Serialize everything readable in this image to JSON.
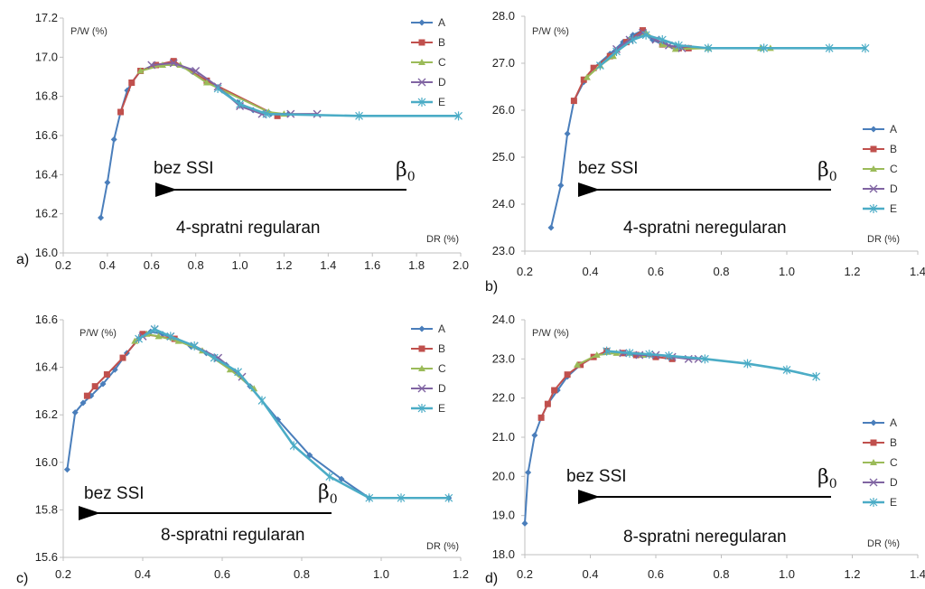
{
  "colors": {
    "A": "#4a7ebb",
    "B": "#c0504d",
    "C": "#9bbb59",
    "D": "#8064a2",
    "E": "#4bacc6",
    "arrow": "#000000",
    "axis": "#bfbfbf"
  },
  "legend_names": [
    "A",
    "B",
    "C",
    "D",
    "E"
  ],
  "chart_data": [
    {
      "type": "line",
      "panel_label": "a)",
      "ylabel": "P/W (%)",
      "xlabel": "DR (%)",
      "xlim": [
        0.2,
        2.0
      ],
      "ylim": [
        16.0,
        17.2
      ],
      "xticks": [
        "0.2",
        "0.4",
        "0.6",
        "0.8",
        "1.0",
        "1.2",
        "1.4",
        "1.6",
        "1.8",
        "2.0"
      ],
      "yticks": [
        "16.0",
        "16.2",
        "16.4",
        "16.6",
        "16.8",
        "17.0",
        "17.2"
      ],
      "annotation_left": "bez SSI",
      "beta": "β",
      "beta_sub": "0",
      "title_note": "4-spratni regularan",
      "series": [
        {
          "name": "A",
          "x": [
            0.37,
            0.4,
            0.43,
            0.46,
            0.49,
            0.51,
            0.55,
            0.61,
            0.69,
            0.78,
            0.85,
            0.92,
            0.99,
            1.06,
            1.14,
            1.22
          ],
          "y": [
            16.18,
            16.36,
            16.58,
            16.72,
            16.83,
            16.87,
            16.93,
            16.96,
            16.97,
            16.93,
            16.88,
            16.83,
            16.77,
            16.73,
            16.71,
            16.71
          ]
        },
        {
          "name": "B",
          "x": [
            0.46,
            0.51,
            0.55,
            0.62,
            0.7,
            0.85,
            1.17
          ],
          "y": [
            16.72,
            16.87,
            16.93,
            16.96,
            16.98,
            16.88,
            16.7
          ]
        },
        {
          "name": "C",
          "x": [
            0.55,
            0.65,
            0.73,
            0.85,
            1.13,
            1.2
          ],
          "y": [
            16.93,
            16.96,
            16.96,
            16.87,
            16.72,
            16.71
          ]
        },
        {
          "name": "D",
          "x": [
            0.6,
            0.7,
            0.8,
            0.9,
            1.0,
            1.1,
            1.23,
            1.35
          ],
          "y": [
            16.96,
            16.97,
            16.93,
            16.85,
            16.75,
            16.71,
            16.71,
            16.71
          ]
        },
        {
          "name": "E",
          "x": [
            0.9,
            1.0,
            1.12,
            1.54,
            1.99
          ],
          "y": [
            16.84,
            16.76,
            16.71,
            16.7,
            16.7
          ]
        }
      ]
    },
    {
      "type": "line",
      "panel_label": "b)",
      "ylabel": "P/W (%)",
      "xlabel": "DR (%)",
      "xlim": [
        0.2,
        1.4
      ],
      "ylim": [
        23.0,
        28.0
      ],
      "xticks": [
        "0.2",
        "0.4",
        "0.6",
        "0.8",
        "1.0",
        "1.2",
        "1.4"
      ],
      "yticks": [
        "23.0",
        "24.0",
        "25.0",
        "26.0",
        "27.0",
        "28.0"
      ],
      "annotation_left": "bez SSI",
      "beta": "β",
      "beta_sub": "0",
      "title_note": "4-spratni neregularan",
      "series": [
        {
          "name": "A",
          "x": [
            0.28,
            0.31,
            0.33,
            0.35,
            0.38,
            0.41,
            0.46,
            0.5,
            0.53,
            0.56,
            0.59,
            0.62,
            0.66,
            0.7,
            0.76
          ],
          "y": [
            23.5,
            24.4,
            25.5,
            26.2,
            26.6,
            26.9,
            27.2,
            27.45,
            27.6,
            27.7,
            27.5,
            27.4,
            27.35,
            27.33,
            27.32
          ]
        },
        {
          "name": "B",
          "x": [
            0.35,
            0.38,
            0.41,
            0.46,
            0.51,
            0.56,
            0.62,
            0.67,
            0.7
          ],
          "y": [
            26.2,
            26.65,
            26.9,
            27.15,
            27.45,
            27.7,
            27.4,
            27.32,
            27.32
          ]
        },
        {
          "name": "C",
          "x": [
            0.39,
            0.43,
            0.47,
            0.52,
            0.57,
            0.62,
            0.66,
            0.76,
            0.92,
            0.95
          ],
          "y": [
            26.7,
            26.95,
            27.15,
            27.5,
            27.65,
            27.4,
            27.3,
            27.32,
            27.32,
            27.32
          ]
        },
        {
          "name": "D",
          "x": [
            0.48,
            0.52,
            0.56,
            0.6,
            0.64,
            0.68
          ],
          "y": [
            27.3,
            27.5,
            27.65,
            27.5,
            27.38,
            27.32
          ]
        },
        {
          "name": "E",
          "x": [
            0.43,
            0.48,
            0.53,
            0.57,
            0.62,
            0.67,
            0.76,
            0.93,
            1.13,
            1.24
          ],
          "y": [
            26.95,
            27.25,
            27.5,
            27.6,
            27.5,
            27.38,
            27.32,
            27.32,
            27.32,
            27.32
          ]
        }
      ]
    },
    {
      "type": "line",
      "panel_label": "c)",
      "ylabel": "P/W (%)",
      "xlabel": "DR (%)",
      "xlim": [
        0.2,
        1.2
      ],
      "ylim": [
        15.6,
        16.6
      ],
      "xticks": [
        "0.2",
        "0.4",
        "0.6",
        "0.8",
        "1.0",
        "1.2"
      ],
      "yticks": [
        "15.6",
        "15.8",
        "16.0",
        "16.2",
        "16.4",
        "16.6"
      ],
      "annotation_left": "bez SSI",
      "beta": "β",
      "beta_sub": "0",
      "title_note": "8-spratni regularan",
      "series": [
        {
          "name": "A",
          "x": [
            0.21,
            0.23,
            0.25,
            0.27,
            0.3,
            0.33,
            0.36,
            0.39,
            0.42,
            0.45,
            0.48,
            0.52,
            0.56,
            0.61,
            0.67,
            0.74,
            0.82,
            0.9,
            0.97,
            1.17
          ],
          "y": [
            15.97,
            16.21,
            16.25,
            16.28,
            16.33,
            16.39,
            16.46,
            16.52,
            16.55,
            16.54,
            16.52,
            16.49,
            16.46,
            16.41,
            16.32,
            16.18,
            16.03,
            15.93,
            15.85,
            15.85
          ]
        },
        {
          "name": "B",
          "x": [
            0.26,
            0.28,
            0.31,
            0.35,
            0.4,
            0.48
          ],
          "y": [
            16.28,
            16.32,
            16.37,
            16.44,
            16.54,
            16.52
          ]
        },
        {
          "name": "C",
          "x": [
            0.38,
            0.41,
            0.44,
            0.49,
            0.55,
            0.62,
            0.68
          ],
          "y": [
            16.51,
            16.54,
            16.53,
            16.51,
            16.47,
            16.39,
            16.31
          ]
        },
        {
          "name": "D",
          "x": [
            0.4,
            0.43,
            0.47,
            0.53,
            0.59,
            0.65
          ],
          "y": [
            16.53,
            16.56,
            16.53,
            16.49,
            16.44,
            16.36
          ]
        },
        {
          "name": "E",
          "x": [
            0.39,
            0.43,
            0.47,
            0.53,
            0.58,
            0.64,
            0.7,
            0.78,
            0.87,
            0.97,
            1.05,
            1.17
          ],
          "y": [
            16.52,
            16.56,
            16.53,
            16.49,
            16.44,
            16.38,
            16.26,
            16.07,
            15.94,
            15.85,
            15.85,
            15.85
          ]
        }
      ]
    },
    {
      "type": "line",
      "panel_label": "d)",
      "ylabel": "P/W (%)",
      "xlabel": "DR (%)",
      "xlim": [
        0.2,
        1.4
      ],
      "ylim": [
        18.0,
        24.0
      ],
      "xticks": [
        "0.2",
        "0.4",
        "0.6",
        "0.8",
        "1.0",
        "1.2",
        "1.4"
      ],
      "yticks": [
        "18.0",
        "19.0",
        "20.0",
        "21.0",
        "22.0",
        "23.0",
        "24.0"
      ],
      "annotation_left": "bez SSI",
      "beta": "β",
      "beta_sub": "0",
      "title_note": "8-spratni neregularan",
      "series": [
        {
          "name": "A",
          "x": [
            0.2,
            0.21,
            0.23,
            0.25,
            0.27,
            0.3,
            0.33,
            0.37,
            0.41,
            0.45
          ],
          "y": [
            18.8,
            20.1,
            21.05,
            21.5,
            21.85,
            22.2,
            22.55,
            22.85,
            23.05,
            23.2
          ]
        },
        {
          "name": "B",
          "x": [
            0.25,
            0.27,
            0.29,
            0.33,
            0.37,
            0.41,
            0.45,
            0.5,
            0.54,
            0.6,
            0.65
          ],
          "y": [
            21.5,
            21.85,
            22.2,
            22.6,
            22.85,
            23.05,
            23.2,
            23.15,
            23.1,
            23.05,
            23.0
          ]
        },
        {
          "name": "C",
          "x": [
            0.36,
            0.42,
            0.48,
            0.52,
            0.56
          ],
          "y": [
            22.85,
            23.1,
            23.15,
            23.15,
            23.1
          ]
        },
        {
          "name": "D",
          "x": [
            0.5,
            0.55,
            0.6,
            0.65,
            0.7,
            0.73
          ],
          "y": [
            23.15,
            23.1,
            23.1,
            23.05,
            23.0,
            23.0
          ]
        },
        {
          "name": "E",
          "x": [
            0.45,
            0.52,
            0.58,
            0.64,
            0.75,
            0.88,
            1.0,
            1.09
          ],
          "y": [
            23.2,
            23.15,
            23.12,
            23.08,
            23.0,
            22.88,
            22.72,
            22.55
          ]
        }
      ]
    }
  ]
}
